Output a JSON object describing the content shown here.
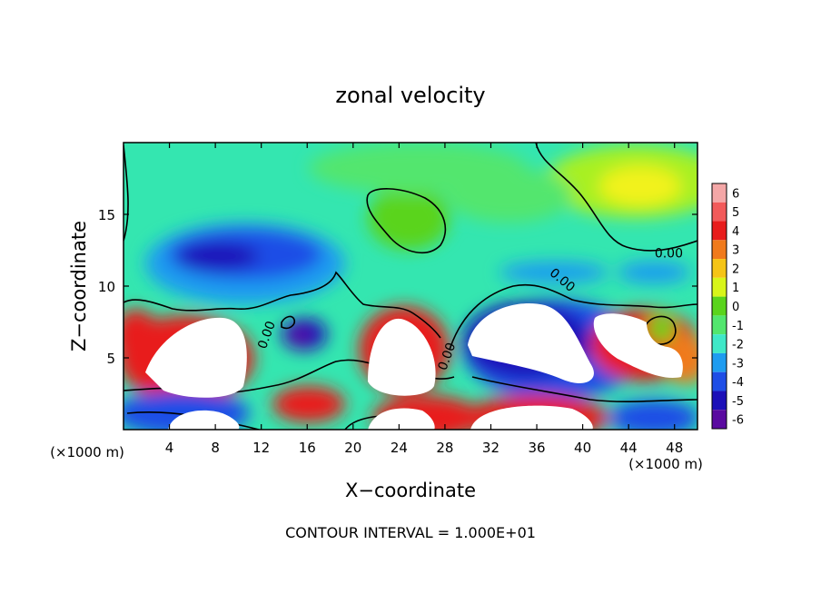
{
  "chart_data": {
    "type": "heatmap",
    "title": "zonal velocity",
    "xlabel": "X−coordinate",
    "ylabel": "Z−coordinate",
    "x_unit_left": "(×1000 m)",
    "x_unit_right": "(×1000 m)",
    "footer": "CONTOUR INTERVAL = 1.000E+01",
    "xlim": [
      0,
      50
    ],
    "ylim": [
      0,
      20
    ],
    "x_ticks": [
      4,
      8,
      12,
      16,
      20,
      24,
      28,
      32,
      36,
      40,
      44,
      48
    ],
    "y_ticks": [
      5,
      10,
      15
    ],
    "contour_labels": [
      {
        "text": "0.00",
        "x": 47.5,
        "y": 12.0
      },
      {
        "text": "0.00",
        "x": 38.0,
        "y": 10.2
      },
      {
        "text": "0.00",
        "x": 12.8,
        "y": 6.5
      },
      {
        "text": "0.00",
        "x": 28.5,
        "y": 5.0
      }
    ],
    "colorbar": {
      "levels": [
        6,
        5,
        4,
        3,
        2,
        1,
        0,
        -1,
        -2,
        -3,
        -4,
        -5,
        -6
      ],
      "colors": [
        "#f4a7a7",
        "#f25a5a",
        "#e81c1c",
        "#f07a1c",
        "#f5c416",
        "#d8f51a",
        "#5ad41c",
        "#52e66e",
        "#3fe8c8",
        "#1e9cf0",
        "#1e4ee6",
        "#1c10b8",
        "#5a0aa0"
      ]
    }
  }
}
